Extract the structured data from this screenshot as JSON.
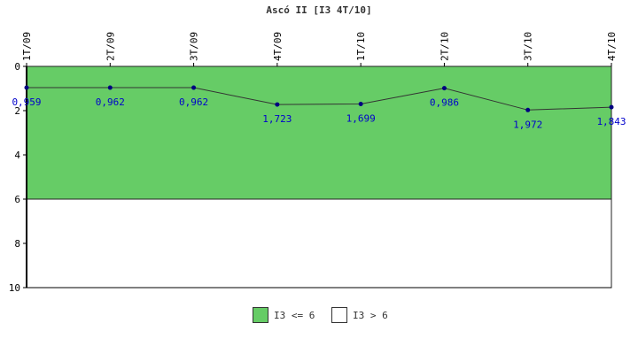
{
  "chart_data": {
    "type": "line",
    "title": "Ascó II [I3 4T/10]",
    "categories": [
      "1T/09",
      "2T/09",
      "3T/09",
      "4T/09",
      "1T/10",
      "2T/10",
      "3T/10",
      "4T/10"
    ],
    "series": [
      {
        "values": [
          0.959,
          0.962,
          0.962,
          1.723,
          1.699,
          0.986,
          1.972,
          1.843
        ],
        "labels": [
          "0,959",
          "0,962",
          "0,962",
          "1,723",
          "1,699",
          "0,986",
          "1,972",
          "1,843"
        ],
        "color": "#333333",
        "marker_color": "#000080"
      }
    ],
    "ylim": [
      0,
      10
    ],
    "y_inverted": true,
    "y_ticks": [
      "0",
      "2",
      "4",
      "6",
      "8",
      "10"
    ],
    "bands": [
      {
        "name": "I3 <= 6",
        "from": 0,
        "to": 6,
        "color": "#66cc66"
      },
      {
        "name": "I3 > 6",
        "from": 6,
        "to": 10,
        "color": "#ffffff"
      }
    ],
    "grid": false,
    "legend_position": "bottom"
  }
}
